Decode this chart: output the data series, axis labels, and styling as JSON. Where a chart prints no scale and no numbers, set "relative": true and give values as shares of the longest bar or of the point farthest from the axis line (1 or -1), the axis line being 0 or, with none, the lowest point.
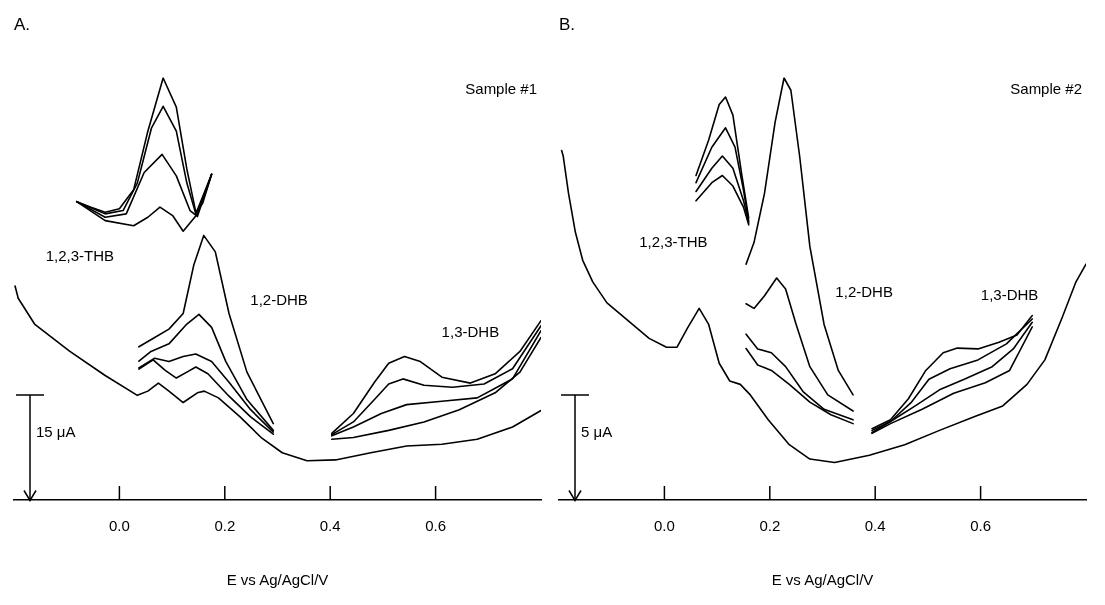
{
  "chart_data": [
    {
      "type": "line",
      "title": "A.",
      "subtitle": "Sample #1",
      "xlabel": "E vs Ag/AgCl/V",
      "ylabel": "15 μA",
      "relative": true,
      "xlim": [
        -0.2,
        0.8
      ],
      "xticks": [
        {
          "value": 0,
          "label": "0.0"
        },
        0.2,
        0.4,
        0.6
      ],
      "legend": false,
      "marker": "none",
      "line_style": "solid",
      "annotations": [
        "1,2,3-THB",
        "1,2-DHB",
        "1,3-DHB"
      ],
      "series": [
        {
          "color": "#000000",
          "x": [
            -0.198,
            -0.192,
            -0.161,
            -0.094,
            -0.027,
            0.034,
            0.054,
            0.074,
            0.094,
            0.121,
            0.148,
            0.161,
            0.188,
            0.229,
            0.269,
            0.309,
            0.356,
            0.41,
            0.477,
            0.545,
            0.612,
            0.679,
            0.746,
            0.8
          ],
          "values": [
            0.507,
            0.478,
            0.417,
            0.352,
            0.295,
            0.248,
            0.258,
            0.277,
            0.258,
            0.231,
            0.254,
            0.258,
            0.242,
            0.197,
            0.148,
            0.112,
            0.093,
            0.095,
            0.112,
            0.128,
            0.132,
            0.144,
            0.173,
            0.212
          ]
        },
        {
          "color": "#000000",
          "x": [
            -0.081,
            -0.054,
            -0.027,
            0,
            0.027,
            0.054,
            0.083,
            0.108,
            0.128,
            0.145,
            0.158,
            0.175
          ],
          "values": [
            0.707,
            0.694,
            0.682,
            0.69,
            0.735,
            0.874,
            1,
            0.931,
            0.784,
            0.682,
            0.703,
            0.772
          ]
        },
        {
          "color": "#000000",
          "x": [
            -0.081,
            -0.027,
            0.007,
            0.034,
            0.061,
            0.083,
            0.108,
            0.128,
            0.145,
            0.175
          ],
          "values": [
            0.707,
            0.678,
            0.686,
            0.751,
            0.882,
            0.933,
            0.874,
            0.751,
            0.678,
            0.772
          ]
        },
        {
          "color": "#000000",
          "x": [
            -0.081,
            -0.027,
            0.013,
            0.047,
            0.081,
            0.108,
            0.134,
            0.148,
            0.175
          ],
          "values": [
            0.707,
            0.67,
            0.678,
            0.776,
            0.819,
            0.768,
            0.686,
            0.672,
            0.772
          ]
        },
        {
          "color": "#000000",
          "x": [
            -0.081,
            -0.027,
            0.027,
            0.054,
            0.077,
            0.101,
            0.121,
            0.148,
            0.175
          ],
          "values": [
            0.707,
            0.662,
            0.65,
            0.67,
            0.694,
            0.674,
            0.637,
            0.678,
            0.772
          ]
        },
        {
          "color": "#000000",
          "x": [
            0.037,
            0.067,
            0.094,
            0.121,
            0.141,
            0.16,
            0.182,
            0.208,
            0.242,
            0.292
          ],
          "values": [
            0.363,
            0.385,
            0.405,
            0.442,
            0.556,
            0.627,
            0.588,
            0.442,
            0.303,
            0.181
          ]
        },
        {
          "color": "#000000",
          "x": [
            0.037,
            0.06,
            0.094,
            0.128,
            0.151,
            0.175,
            0.202,
            0.242,
            0.292
          ],
          "values": [
            0.329,
            0.352,
            0.37,
            0.417,
            0.44,
            0.409,
            0.328,
            0.238,
            0.165
          ]
        },
        {
          "color": "#000000",
          "x": [
            0.037,
            0.067,
            0.094,
            0.121,
            0.145,
            0.175,
            0.208,
            0.249,
            0.292
          ],
          "values": [
            0.313,
            0.336,
            0.328,
            0.34,
            0.346,
            0.328,
            0.279,
            0.214,
            0.161
          ]
        },
        {
          "color": "#000000",
          "x": [
            0.037,
            0.064,
            0.087,
            0.108,
            0.128,
            0.145,
            0.168,
            0.208,
            0.249,
            0.292
          ],
          "values": [
            0.31,
            0.332,
            0.307,
            0.289,
            0.303,
            0.315,
            0.299,
            0.246,
            0.197,
            0.156
          ]
        },
        {
          "color": "#000000",
          "x": [
            0.403,
            0.444,
            0.484,
            0.511,
            0.541,
            0.571,
            0.612,
            0.666,
            0.713,
            0.76,
            0.8
          ],
          "values": [
            0.158,
            0.205,
            0.279,
            0.324,
            0.34,
            0.328,
            0.291,
            0.277,
            0.299,
            0.352,
            0.425
          ]
        },
        {
          "color": "#000000",
          "x": [
            0.403,
            0.444,
            0.484,
            0.511,
            0.538,
            0.578,
            0.632,
            0.692,
            0.746,
            0.8
          ],
          "values": [
            0.155,
            0.185,
            0.238,
            0.275,
            0.287,
            0.272,
            0.267,
            0.275,
            0.311,
            0.413
          ]
        },
        {
          "color": "#000000",
          "x": [
            0.403,
            0.444,
            0.497,
            0.545,
            0.612,
            0.679,
            0.746,
            0.8
          ],
          "values": [
            0.152,
            0.173,
            0.205,
            0.226,
            0.234,
            0.242,
            0.287,
            0.401
          ]
        },
        {
          "color": "#000000",
          "x": [
            0.403,
            0.444,
            0.511,
            0.578,
            0.645,
            0.713,
            0.76,
            0.8
          ],
          "values": [
            0.144,
            0.148,
            0.165,
            0.185,
            0.214,
            0.254,
            0.303,
            0.385
          ]
        }
      ]
    },
    {
      "type": "line",
      "title": "B.",
      "subtitle": "Sample #2",
      "xlabel": "E vs Ag/AgCl/V",
      "ylabel": "5 μA",
      "relative": true,
      "xlim": [
        -0.2,
        0.8
      ],
      "xticks": [
        {
          "value": 0,
          "label": "0.0"
        },
        0.2,
        0.4,
        0.6
      ],
      "legend": false,
      "marker": "none",
      "line_style": "solid",
      "annotations": [
        "1,2,3-THB",
        "1,2-DHB",
        "1,3-DHB"
      ],
      "series": [
        {
          "color": "#000000",
          "x": [
            -0.195,
            -0.192,
            -0.182,
            -0.169,
            -0.155,
            -0.136,
            -0.109,
            -0.069,
            -0.029,
            0.004,
            0.024,
            0.044,
            0.066,
            0.084,
            0.104,
            0.124,
            0.144,
            0.163,
            0.197,
            0.237,
            0.276,
            0.323,
            0.389,
            0.456,
            0.522,
            0.589,
            0.642,
            0.688,
            0.722,
            0.755,
            0.781,
            0.8
          ],
          "values": [
            0.828,
            0.815,
            0.727,
            0.635,
            0.568,
            0.517,
            0.467,
            0.425,
            0.383,
            0.362,
            0.362,
            0.408,
            0.454,
            0.416,
            0.324,
            0.282,
            0.274,
            0.249,
            0.19,
            0.131,
            0.097,
            0.089,
            0.106,
            0.131,
            0.165,
            0.198,
            0.223,
            0.274,
            0.332,
            0.433,
            0.517,
            0.559
          ]
        },
        {
          "color": "#000000",
          "x": [
            0.06,
            0.084,
            0.104,
            0.116,
            0.13,
            0.147,
            0.16
          ],
          "values": [
            0.769,
            0.853,
            0.937,
            0.955,
            0.912,
            0.769,
            0.668
          ]
        },
        {
          "color": "#000000",
          "x": [
            0.06,
            0.09,
            0.116,
            0.134,
            0.15,
            0.16
          ],
          "values": [
            0.752,
            0.836,
            0.882,
            0.836,
            0.735,
            0.66
          ]
        },
        {
          "color": "#000000",
          "x": [
            0.06,
            0.09,
            0.11,
            0.13,
            0.15,
            0.16
          ],
          "values": [
            0.731,
            0.786,
            0.815,
            0.786,
            0.71,
            0.656
          ]
        },
        {
          "color": "#000000",
          "x": [
            0.06,
            0.09,
            0.11,
            0.13,
            0.15,
            0.16
          ],
          "values": [
            0.709,
            0.752,
            0.769,
            0.744,
            0.694,
            0.652
          ]
        },
        {
          "color": "#000000",
          "x": [
            0.155,
            0.17,
            0.19,
            0.21,
            0.227,
            0.24,
            0.257,
            0.276,
            0.303,
            0.33,
            0.358
          ],
          "values": [
            0.559,
            0.61,
            0.727,
            0.895,
            1,
            0.971,
            0.811,
            0.601,
            0.416,
            0.307,
            0.249
          ]
        },
        {
          "color": "#000000",
          "x": [
            0.155,
            0.17,
            0.19,
            0.213,
            0.23,
            0.25,
            0.276,
            0.31,
            0.358
          ],
          "values": [
            0.465,
            0.454,
            0.484,
            0.526,
            0.5,
            0.416,
            0.316,
            0.249,
            0.211
          ]
        },
        {
          "color": "#000000",
          "x": [
            0.155,
            0.177,
            0.203,
            0.23,
            0.263,
            0.303,
            0.358
          ],
          "values": [
            0.393,
            0.358,
            0.349,
            0.316,
            0.257,
            0.215,
            0.19
          ]
        },
        {
          "color": "#000000",
          "x": [
            0.155,
            0.177,
            0.203,
            0.237,
            0.276,
            0.316,
            0.358
          ],
          "values": [
            0.359,
            0.32,
            0.307,
            0.274,
            0.232,
            0.202,
            0.181
          ]
        },
        {
          "color": "#000000",
          "x": [
            0.394,
            0.429,
            0.463,
            0.496,
            0.529,
            0.556,
            0.595,
            0.635,
            0.669,
            0.698
          ],
          "values": [
            0.169,
            0.19,
            0.24,
            0.307,
            0.349,
            0.36,
            0.358,
            0.374,
            0.391,
            0.437
          ]
        },
        {
          "color": "#000000",
          "x": [
            0.394,
            0.429,
            0.469,
            0.502,
            0.542,
            0.595,
            0.649,
            0.698
          ],
          "values": [
            0.165,
            0.186,
            0.232,
            0.286,
            0.311,
            0.332,
            0.37,
            0.429
          ]
        },
        {
          "color": "#000000",
          "x": [
            0.394,
            0.429,
            0.476,
            0.522,
            0.569,
            0.622,
            0.662,
            0.698
          ],
          "values": [
            0.16,
            0.186,
            0.223,
            0.261,
            0.286,
            0.316,
            0.358,
            0.421
          ]
        },
        {
          "color": "#000000",
          "x": [
            0.394,
            0.429,
            0.489,
            0.549,
            0.609,
            0.655,
            0.698
          ],
          "values": [
            0.158,
            0.181,
            0.215,
            0.253,
            0.278,
            0.307,
            0.41
          ]
        }
      ]
    }
  ]
}
